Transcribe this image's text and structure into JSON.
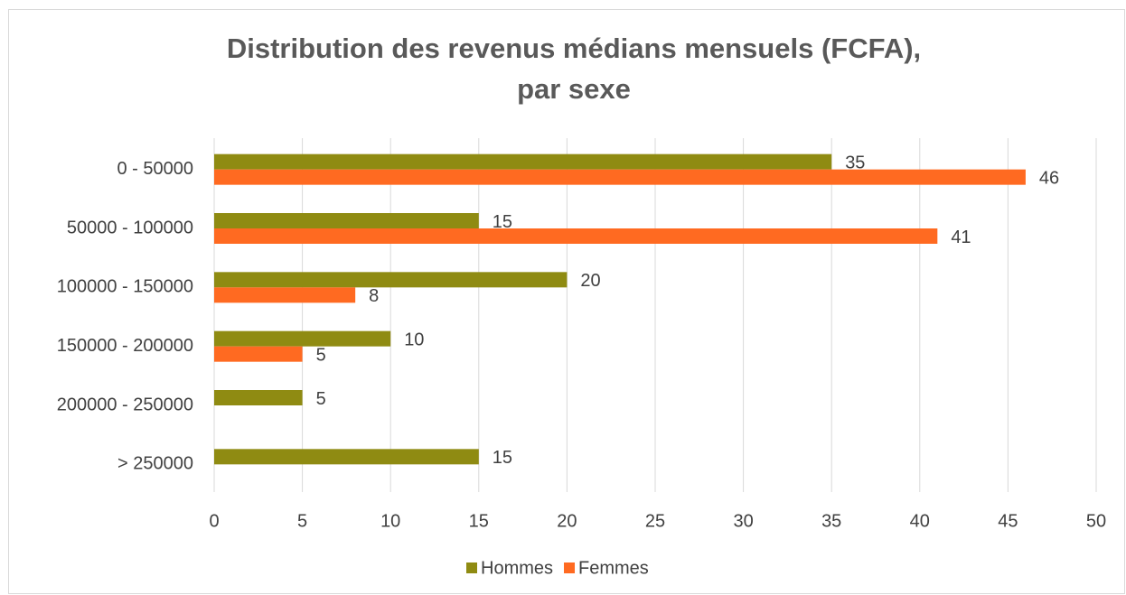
{
  "chart_data": {
    "type": "bar",
    "orientation": "horizontal",
    "title": [
      "Distribution des revenus médians mensuels (FCFA),",
      "par sexe"
    ],
    "categories": [
      "0 - 50000",
      "50000 - 100000",
      "100000 - 150000",
      "150000 - 200000",
      "200000 - 250000",
      "> 250000"
    ],
    "series": [
      {
        "name": "Hommes",
        "color": "#8f8b12",
        "values": [
          35,
          15,
          20,
          10,
          5,
          15
        ]
      },
      {
        "name": "Femmes",
        "color": "#ff6a21",
        "values": [
          46,
          41,
          8,
          5,
          null,
          null
        ]
      }
    ],
    "xlim": [
      0,
      50
    ],
    "xticks": [
      0,
      5,
      10,
      15,
      20,
      25,
      30,
      35,
      40,
      45,
      50
    ],
    "grid": true,
    "legend": "bottom"
  }
}
